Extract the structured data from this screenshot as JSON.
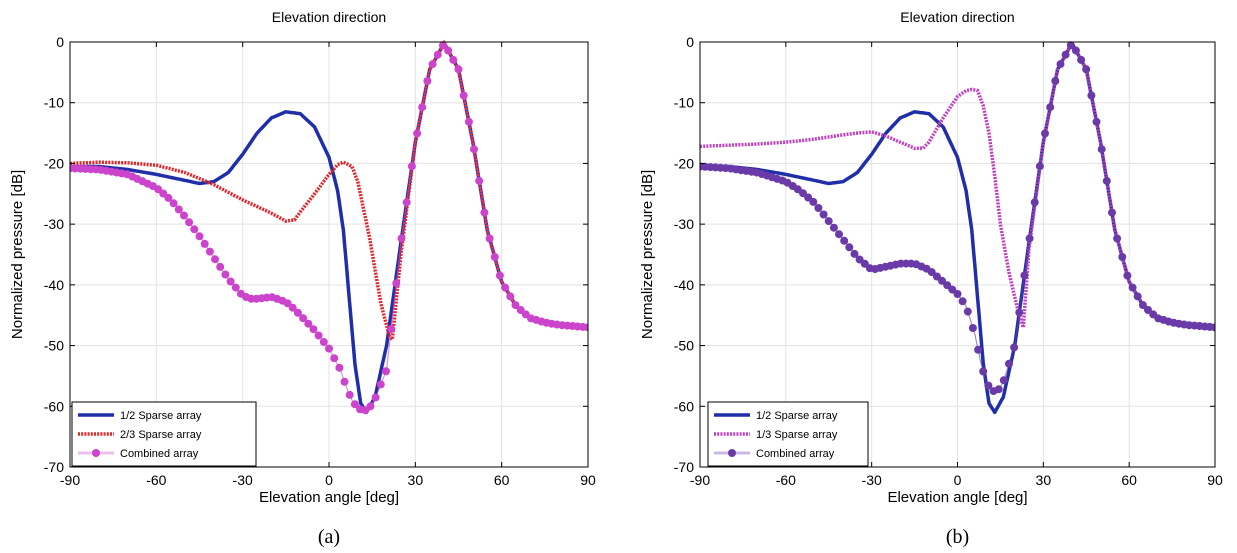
{
  "chart_data": [
    {
      "type": "line",
      "title": "Elevation direction",
      "xlabel": "Elevation angle [deg]",
      "ylabel": "Normalized pressure [dB]",
      "caption": "(a)",
      "xlim": [
        -90,
        90
      ],
      "ylim": [
        -70,
        0
      ],
      "xticks": [
        -90,
        -60,
        -30,
        0,
        30,
        60,
        90
      ],
      "yticks": [
        0,
        -10,
        -20,
        -30,
        -40,
        -50,
        -60,
        -70
      ],
      "grid": true,
      "legend_position": "bottom-left",
      "series": [
        {
          "name": "1/2 Sparse array",
          "color": "#1f2fa8",
          "style": "solid",
          "x": [
            -90,
            -80,
            -70,
            -60,
            -50,
            -45,
            -40,
            -35,
            -30,
            -25,
            -20,
            -15,
            -10,
            -5,
            0,
            3,
            5,
            7,
            9,
            11,
            13,
            16,
            20,
            25,
            30,
            35,
            40,
            45,
            50,
            55,
            60,
            65,
            70,
            75,
            80,
            85,
            90
          ],
          "y": [
            -20.5,
            -20.5,
            -21,
            -21.8,
            -22.8,
            -23.3,
            -23,
            -21.5,
            -18.5,
            -15,
            -12.5,
            -11.5,
            -11.8,
            -14,
            -19,
            -24.5,
            -31,
            -42,
            -53,
            -59.5,
            -61,
            -58.5,
            -50,
            -33,
            -16.5,
            -4.5,
            -0.2,
            -4.5,
            -16.5,
            -31,
            -39.5,
            -43.5,
            -45.5,
            -46.2,
            -46.6,
            -46.8,
            -47
          ]
        },
        {
          "name": "2/3 Sparse array",
          "color": "#e0262a",
          "style": "dotted",
          "x": [
            -90,
            -80,
            -70,
            -60,
            -50,
            -40,
            -30,
            -20,
            -15,
            -12,
            -10,
            -5,
            0,
            3,
            5,
            8,
            10,
            14,
            18,
            21,
            22,
            25,
            30,
            35,
            40,
            45,
            50,
            55,
            60,
            65,
            70,
            75,
            80,
            85,
            90
          ],
          "y": [
            -20,
            -19.8,
            -19.9,
            -20.3,
            -21.5,
            -23.5,
            -26,
            -28.2,
            -29.5,
            -29.3,
            -28,
            -25,
            -21.8,
            -20.2,
            -19.8,
            -20.5,
            -23,
            -32,
            -43,
            -48.5,
            -49,
            -35,
            -16.5,
            -4.5,
            -0.2,
            -4.5,
            -16.5,
            -31,
            -39.5,
            -43.5,
            -45.5,
            -46.2,
            -46.6,
            -46.8,
            -47
          ]
        },
        {
          "name": "Combined array",
          "color": "#cc44cc",
          "style": "markers",
          "x": [
            -90,
            -80,
            -70,
            -60,
            -55,
            -50,
            -45,
            -40,
            -35,
            -30,
            -27,
            -25,
            -20,
            -15,
            -12,
            -10,
            -5,
            0,
            4,
            6,
            8,
            10,
            12,
            14,
            16,
            20,
            25,
            30,
            35,
            40,
            45,
            50,
            55,
            60,
            65,
            70,
            75,
            80,
            85,
            90
          ],
          "y": [
            -20.8,
            -21,
            -21.8,
            -24,
            -26,
            -28.8,
            -32,
            -35.5,
            -39,
            -41.8,
            -42.3,
            -42.3,
            -42,
            -42.8,
            -44,
            -45,
            -47.5,
            -50.5,
            -54,
            -56.8,
            -59,
            -60.3,
            -60.8,
            -60.3,
            -58.8,
            -54,
            -33,
            -16.5,
            -4.5,
            -0.2,
            -4.5,
            -16.5,
            -31,
            -39.5,
            -43.5,
            -45.5,
            -46.2,
            -46.6,
            -46.8,
            -47
          ]
        }
      ]
    },
    {
      "type": "line",
      "title": "Elevation direction",
      "xlabel": "Elevation angle [deg]",
      "ylabel": "Normalized pressure [dB]",
      "caption": "(b)",
      "xlim": [
        -90,
        90
      ],
      "ylim": [
        -70,
        0
      ],
      "xticks": [
        -90,
        -60,
        -30,
        0,
        30,
        60,
        90
      ],
      "yticks": [
        0,
        -10,
        -20,
        -30,
        -40,
        -50,
        -60,
        -70
      ],
      "grid": true,
      "legend_position": "bottom-center",
      "series": [
        {
          "name": "1/2 Sparse array",
          "color": "#1f2fa8",
          "style": "solid",
          "x": [
            -90,
            -80,
            -70,
            -60,
            -50,
            -45,
            -40,
            -35,
            -30,
            -25,
            -20,
            -15,
            -10,
            -5,
            0,
            3,
            5,
            7,
            9,
            11,
            13,
            16,
            20,
            25,
            30,
            35,
            40,
            45,
            50,
            55,
            60,
            65,
            70,
            75,
            80,
            85,
            90
          ],
          "y": [
            -20.5,
            -20.5,
            -21,
            -21.8,
            -22.8,
            -23.3,
            -23,
            -21.5,
            -18.5,
            -15,
            -12.5,
            -11.5,
            -11.8,
            -14,
            -19,
            -24.5,
            -31,
            -42,
            -53,
            -59.5,
            -61,
            -58.5,
            -50,
            -33,
            -16.5,
            -4.5,
            -0.2,
            -4.5,
            -16.5,
            -31,
            -39.5,
            -43.5,
            -45.5,
            -46.2,
            -46.6,
            -46.8,
            -47
          ]
        },
        {
          "name": "1/3 Sparse array",
          "color": "#c040c0",
          "style": "dotted",
          "x": [
            -90,
            -80,
            -70,
            -60,
            -50,
            -40,
            -35,
            -30,
            -25,
            -20,
            -15,
            -12,
            -10,
            -5,
            0,
            3,
            5,
            7,
            9,
            11,
            13,
            15,
            18,
            21,
            23,
            25,
            30,
            35,
            40,
            45,
            50,
            55,
            60,
            65,
            70,
            75,
            80,
            85,
            90
          ],
          "y": [
            -17.2,
            -17,
            -16.8,
            -16.5,
            -16,
            -15.3,
            -15,
            -14.8,
            -15.5,
            -16.5,
            -17.5,
            -17.5,
            -16.5,
            -12.5,
            -9,
            -8,
            -7.8,
            -8,
            -10.5,
            -15,
            -22,
            -30,
            -38,
            -44,
            -47,
            -34,
            -16.5,
            -4.5,
            -0.2,
            -4.5,
            -16.5,
            -31,
            -39.5,
            -43.5,
            -45.5,
            -46.2,
            -46.6,
            -46.8,
            -47
          ]
        },
        {
          "name": "Combined array",
          "color": "#6a3aa8",
          "style": "markers",
          "x": [
            -90,
            -80,
            -70,
            -60,
            -55,
            -50,
            -45,
            -40,
            -35,
            -30,
            -25,
            -20,
            -15,
            -10,
            -5,
            0,
            3,
            6,
            8,
            10,
            12,
            14,
            16,
            18,
            20,
            25,
            30,
            35,
            40,
            45,
            50,
            55,
            60,
            65,
            70,
            75,
            80,
            85,
            90
          ],
          "y": [
            -20.5,
            -20.8,
            -21.5,
            -23,
            -24.5,
            -26.5,
            -29.5,
            -32.5,
            -35.5,
            -37.5,
            -37,
            -36.5,
            -36.5,
            -37.5,
            -39.5,
            -41.5,
            -43.5,
            -48,
            -52.5,
            -56,
            -57.5,
            -57.5,
            -56,
            -53,
            -50,
            -33,
            -16.5,
            -4.5,
            -0.2,
            -4.5,
            -16.5,
            -31,
            -39.5,
            -43.5,
            -45.5,
            -46.2,
            -46.6,
            -46.8,
            -47
          ]
        }
      ]
    }
  ]
}
